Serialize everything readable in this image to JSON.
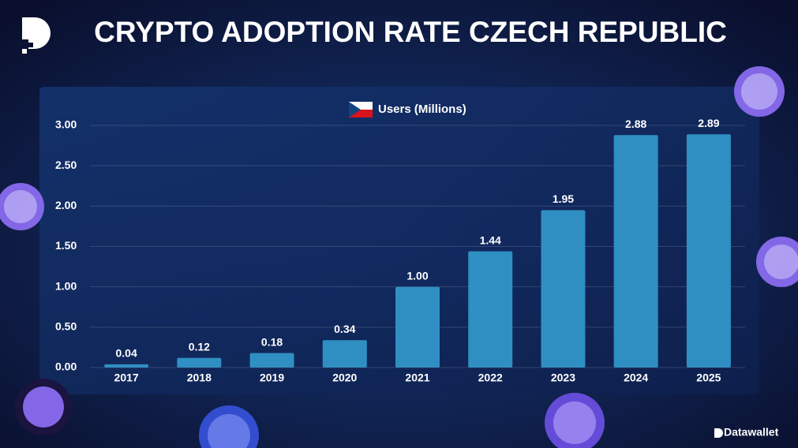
{
  "chart_data": {
    "type": "bar",
    "title": "CRYPTO ADOPTION RATE CZECH REPUBLIC",
    "brand": "Datawallet",
    "categories": [
      "2017",
      "2018",
      "2019",
      "2020",
      "2021",
      "2022",
      "2023",
      "2024",
      "2025"
    ],
    "series": [
      {
        "name": "Users (Millions)",
        "color": "#2f8fc2",
        "values": [
          0.04,
          0.12,
          0.18,
          0.34,
          1.0,
          1.44,
          1.95,
          2.88,
          2.89
        ],
        "value_labels": [
          "0.04",
          "0.12",
          "0.18",
          "0.34",
          "1.00",
          "1.44",
          "1.95",
          "2.88",
          "2.89"
        ]
      }
    ],
    "ylim": [
      0,
      3
    ],
    "yticks": [
      {
        "value": 0,
        "label": "0.00"
      },
      {
        "value": 0.5,
        "label": "0.50"
      },
      {
        "value": 1,
        "label": "1.00"
      },
      {
        "value": 1.5,
        "label": "1.50"
      },
      {
        "value": 2,
        "label": "2.00"
      },
      {
        "value": 2.5,
        "label": "2.50"
      },
      {
        "value": 3,
        "label": "3.00"
      }
    ],
    "grid": true
  }
}
